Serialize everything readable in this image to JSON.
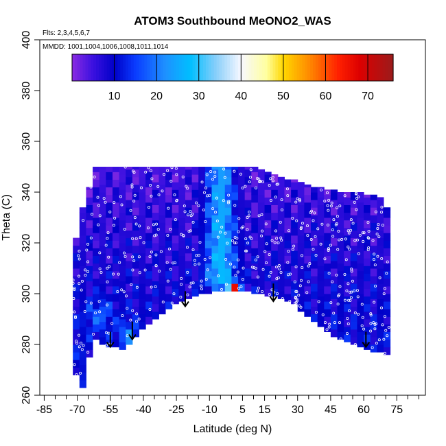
{
  "chart_data": {
    "type": "heatmap",
    "title": "ATOM3 Southbound MeONO2_WAS",
    "flights_note": "Flts: 2,3,4,5,6,7",
    "dates_note": "MMDD: 1001,1004,1006,1008,1011,1014",
    "xlabel": "Latitude (deg N)",
    "ylabel": "Theta (C)",
    "xlim": [
      -87,
      88
    ],
    "ylim": [
      260,
      400
    ],
    "x_tick_labels": [
      "-85",
      "-70",
      "-55",
      "-40",
      "-25",
      "-10",
      "5",
      "15",
      "30",
      "45",
      "60",
      "75"
    ],
    "x_tick_values": [
      -85,
      -70,
      -55,
      -40,
      -25,
      -10,
      5,
      15,
      30,
      45,
      60,
      75
    ],
    "x_minor_ticks": [
      -80,
      -75,
      -65,
      -60,
      -50,
      -45,
      -35,
      -30,
      -20,
      -15,
      -5,
      0,
      10,
      20,
      25,
      35,
      40,
      50,
      55,
      65,
      70,
      80,
      85
    ],
    "y_tick_labels": [
      "260",
      "280",
      "300",
      "320",
      "340",
      "360",
      "380",
      "400"
    ],
    "y_tick_values": [
      260,
      280,
      300,
      320,
      340,
      360,
      380,
      400
    ],
    "colorbar": {
      "range": [
        0,
        76
      ],
      "tick_labels": [
        "10",
        "20",
        "30",
        "40",
        "50",
        "60",
        "70"
      ],
      "tick_values": [
        10,
        20,
        30,
        40,
        50,
        60,
        70
      ],
      "gradient": [
        {
          "value": 0,
          "color": "#8a2be2"
        },
        {
          "value": 5,
          "color": "#3a10e0"
        },
        {
          "value": 10,
          "color": "#0000c8"
        },
        {
          "value": 15,
          "color": "#0a3cff"
        },
        {
          "value": 22,
          "color": "#1e90ff"
        },
        {
          "value": 28,
          "color": "#00bfff"
        },
        {
          "value": 34,
          "color": "#87cefa"
        },
        {
          "value": 40,
          "color": "#f8f8ff"
        },
        {
          "value": 46,
          "color": "#ffffa0"
        },
        {
          "value": 50,
          "color": "#ffd700"
        },
        {
          "value": 56,
          "color": "#ff8c00"
        },
        {
          "value": 63,
          "color": "#ff2000"
        },
        {
          "value": 68,
          "color": "#dd0000"
        },
        {
          "value": 76,
          "color": "#9b1b1b"
        }
      ]
    },
    "field": {
      "lat_edges": [
        -72,
        -69,
        -66,
        -63,
        -60,
        -57,
        -54,
        -51,
        -48,
        -45,
        -42,
        -39,
        -36,
        -33,
        -30,
        -27,
        -24,
        -21,
        -18,
        -15,
        -12,
        -9,
        -6,
        -3,
        0,
        3,
        6,
        9,
        12,
        15,
        18,
        21,
        24,
        27,
        30,
        33,
        36,
        39,
        42,
        45,
        48,
        51,
        54,
        57,
        60,
        63,
        66,
        69,
        72
      ],
      "top_theta": [
        322,
        334,
        342,
        350,
        350,
        350,
        350,
        350,
        350,
        350,
        350,
        350,
        350,
        350,
        350,
        350,
        350,
        350,
        350,
        350,
        350,
        350,
        350,
        350,
        350,
        350,
        350,
        350,
        349,
        348,
        347,
        346,
        345,
        345,
        344,
        343,
        342,
        342,
        341,
        341,
        340,
        340,
        340,
        340,
        339,
        339,
        338,
        334
      ],
      "bottom_theta": [
        268,
        263,
        275,
        282,
        280,
        279,
        279,
        278,
        280,
        283,
        286,
        288,
        290,
        292,
        294,
        296,
        297,
        298,
        299,
        300,
        300,
        301,
        301,
        301,
        301,
        301,
        301,
        300,
        300,
        299,
        299,
        298,
        297,
        296,
        293,
        291,
        289,
        287,
        285,
        283,
        282,
        281,
        280,
        279,
        278,
        277,
        277,
        276
      ]
    },
    "arrows": [
      {
        "lat": -55,
        "theta_top": 285,
        "theta_tip": 279
      },
      {
        "lat": -45,
        "theta_top": 289,
        "theta_tip": 282
      },
      {
        "lat": -21,
        "theta_top": 301,
        "theta_tip": 295
      },
      {
        "lat": 19,
        "theta_top": 304,
        "theta_tip": 297
      },
      {
        "lat": 61,
        "theta_top": 285,
        "theta_tip": 279
      }
    ],
    "sample_count": 520
  }
}
